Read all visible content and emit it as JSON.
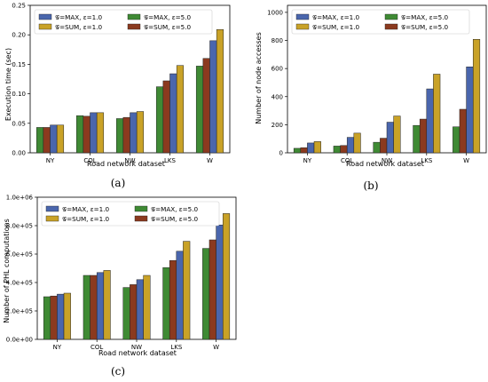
{
  "colors": {
    "max_eps1": "#4a66ad",
    "sum_eps1": "#c9a227",
    "max_eps5": "#3f8a34",
    "sum_eps5": "#8b3a1f"
  },
  "legend_labels": {
    "max_eps1": "𝒢=MAX, ε=1.0",
    "sum_eps1": "𝒢=SUM, ε=1.0",
    "max_eps5": "𝒢=MAX, ε=5.0",
    "sum_eps5": "𝒢=SUM, ε=5.0"
  },
  "chart_data": [
    {
      "type": "bar",
      "panel": "(a)",
      "xlabel": "Road network dataset",
      "ylabel": "Execution time (sec)",
      "categories": [
        "NY",
        "COL",
        "NW",
        "LKS",
        "W"
      ],
      "ylim": [
        0,
        0.25
      ],
      "yticks": [
        "0.00",
        "0.05",
        "0.10",
        "0.15",
        "0.20",
        "0.25"
      ],
      "ytick_values": [
        0,
        0.05,
        0.1,
        0.15,
        0.2,
        0.25
      ],
      "legend_position": "top-left",
      "series": [
        {
          "name": "𝒢=MAX, ε=5.0",
          "values": [
            0.043,
            0.063,
            0.058,
            0.112,
            0.147
          ]
        },
        {
          "name": "𝒢=SUM, ε=5.0",
          "values": [
            0.043,
            0.062,
            0.06,
            0.122,
            0.16
          ]
        },
        {
          "name": "𝒢=MAX, ε=1.0",
          "values": [
            0.047,
            0.068,
            0.068,
            0.134,
            0.19
          ]
        },
        {
          "name": "𝒢=SUM, ε=1.0",
          "values": [
            0.047,
            0.068,
            0.07,
            0.148,
            0.209
          ]
        }
      ]
    },
    {
      "type": "bar",
      "panel": "(b)",
      "xlabel": "Road network dataset",
      "ylabel": "Number of node accesses",
      "categories": [
        "NY",
        "COL",
        "NW",
        "LKS",
        "W"
      ],
      "ylim": [
        0,
        1050
      ],
      "yticks": [
        "0",
        "200",
        "400",
        "600",
        "800",
        "1000"
      ],
      "ytick_values": [
        0,
        200,
        400,
        600,
        800,
        1000
      ],
      "legend_position": "top-left",
      "series": [
        {
          "name": "𝒢=MAX, ε=5.0",
          "values": [
            32,
            48,
            75,
            195,
            185
          ]
        },
        {
          "name": "𝒢=SUM, ε=5.0",
          "values": [
            36,
            52,
            104,
            240,
            310
          ]
        },
        {
          "name": "𝒢=MAX, ε=1.0",
          "values": [
            70,
            110,
            218,
            455,
            612
          ]
        },
        {
          "name": "𝒢=SUM, ε=1.0",
          "values": [
            80,
            140,
            262,
            560,
            808
          ]
        }
      ]
    },
    {
      "type": "bar",
      "panel": "(c)",
      "xlabel": "Road network dataset",
      "ylabel": "Number of PHL computations",
      "categories": [
        "NY",
        "COL",
        "NW",
        "LKS",
        "W"
      ],
      "ylim": [
        0,
        1000000
      ],
      "yticks": [
        "0.0e+00",
        "2.0e+05",
        "4.0e+05",
        "6.0e+05",
        "8.0e+05",
        "1.0e+06"
      ],
      "ytick_values": [
        0,
        200000,
        400000,
        600000,
        800000,
        1000000
      ],
      "legend_position": "top-left",
      "series": [
        {
          "name": "𝒢=MAX, ε=5.0",
          "values": [
            300000,
            450000,
            365000,
            505000,
            640000
          ]
        },
        {
          "name": "𝒢=SUM, ε=5.0",
          "values": [
            305000,
            450000,
            385000,
            555000,
            700000
          ]
        },
        {
          "name": "𝒢=MAX, ε=1.0",
          "values": [
            318000,
            470000,
            420000,
            620000,
            805000
          ]
        },
        {
          "name": "𝒢=SUM, ε=1.0",
          "values": [
            325000,
            485000,
            450000,
            690000,
            885000
          ]
        }
      ]
    }
  ]
}
